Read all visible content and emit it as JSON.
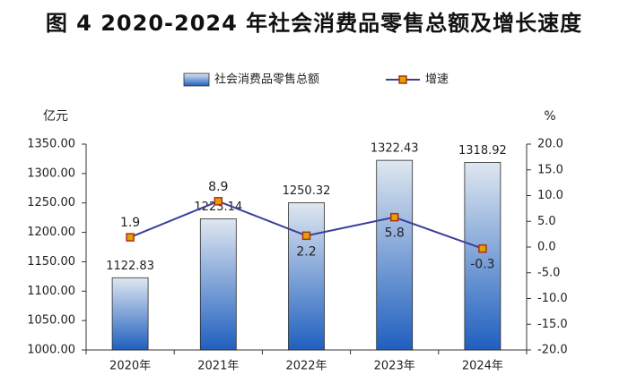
{
  "chart_data": {
    "type": "bar",
    "title": "图 4 2020-2024 年社会消费品零售总额及增长速度",
    "categories": [
      "2020年",
      "2021年",
      "2022年",
      "2023年",
      "2024年"
    ],
    "series": [
      {
        "name": "社会消费品零售总额",
        "kind": "bar",
        "axis": "left",
        "values": [
          1122.83,
          1223.14,
          1250.32,
          1322.43,
          1318.92
        ],
        "labels": [
          "1122.83",
          "1223.14",
          "1250.32",
          "1322.43",
          "1318.92"
        ]
      },
      {
        "name": "增速",
        "kind": "line",
        "axis": "right",
        "values": [
          1.9,
          8.9,
          2.2,
          5.8,
          -0.3
        ],
        "labels": [
          "1.9",
          "8.9",
          "2.2",
          "5.8",
          "-0.3"
        ]
      }
    ],
    "y_left": {
      "unit": "亿元",
      "min": 1000,
      "max": 1350,
      "ticks": [
        "1000.00",
        "1050.00",
        "1100.00",
        "1150.00",
        "1200.00",
        "1250.00",
        "1300.00",
        "1350.00"
      ]
    },
    "y_right": {
      "unit": "%",
      "min": -20,
      "max": 20,
      "ticks": [
        "-20.0",
        "-15.0",
        "-10.0",
        "-5.0",
        "0.0",
        "5.0",
        "10.0",
        "15.0",
        "20.0"
      ]
    },
    "legend_position": "top",
    "grid": false
  },
  "colors": {
    "bar_top": "#dfe7f0",
    "bar_bottom": "#1f5fbf",
    "bar_stroke": "#2a2a2a",
    "line": "#3b3f9a",
    "marker_fill": "#e0a200",
    "marker_stroke": "#b03010",
    "axis": "#333333",
    "text": "#222222"
  }
}
